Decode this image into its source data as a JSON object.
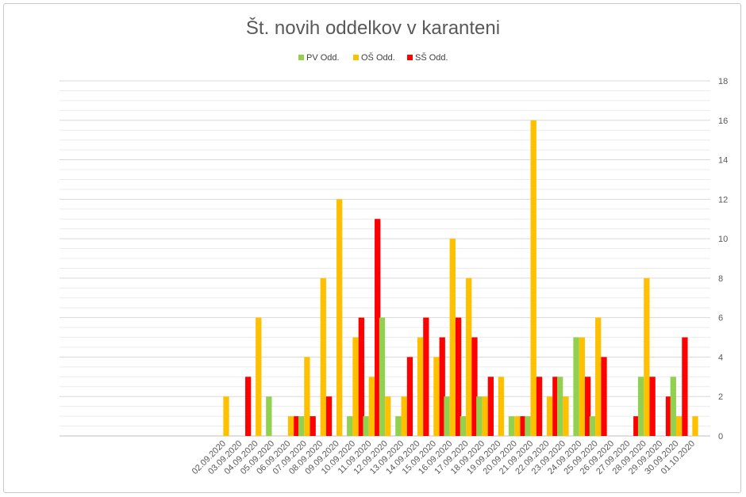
{
  "chart_data": {
    "type": "bar",
    "title": "Št. novih oddelkov v karanteni",
    "xlabel": "",
    "ylabel": "",
    "ylim": [
      0,
      18
    ],
    "yticks": [
      0,
      2,
      4,
      6,
      8,
      10,
      12,
      14,
      16,
      18
    ],
    "legend_position": "top",
    "categories": [
      "02.09.2020",
      "03.09.2020",
      "04.09.2020",
      "05.09.2020",
      "06.09.2020",
      "07.09.2020",
      "08.09.2020",
      "09.09.2020",
      "10.09.2020",
      "11.09.2020",
      "12.09.2020",
      "13.09.2020",
      "14.09.2020",
      "15.09.2020",
      "16.09.2020",
      "17.09.2020",
      "18.09.2020",
      "19.09.2020",
      "20.09.2020",
      "21.09.2020",
      "22.09.2020",
      "23.09.2020",
      "24.09.2020",
      "25.09.2020",
      "26.09.2020",
      "27.09.2020",
      "28.09.2020",
      "29.09.2020",
      "30.09.2020",
      "01.10.2020"
    ],
    "series": [
      {
        "name": "PV Odd.",
        "color": "#92d050",
        "values": [
          0,
          0,
          0,
          2,
          0,
          1,
          0,
          0,
          1,
          1,
          6,
          1,
          0,
          0,
          2,
          1,
          2,
          0,
          1,
          1,
          0,
          3,
          5,
          1,
          0,
          0,
          3,
          0,
          3,
          0
        ]
      },
      {
        "name": "OŠ Odd.",
        "color": "#ffc000",
        "values": [
          2,
          0,
          6,
          0,
          1,
          4,
          8,
          12,
          5,
          3,
          2,
          2,
          5,
          4,
          10,
          8,
          2,
          3,
          1,
          16,
          2,
          2,
          5,
          6,
          0,
          0,
          8,
          0,
          1,
          1
        ]
      },
      {
        "name": "SŠ Odd.",
        "color": "#ff0000",
        "values": [
          0,
          3,
          0,
          0,
          1,
          1,
          2,
          0,
          6,
          11,
          0,
          4,
          6,
          5,
          6,
          5,
          3,
          0,
          1,
          3,
          3,
          0,
          3,
          4,
          0,
          1,
          3,
          2,
          5,
          0
        ]
      }
    ]
  }
}
